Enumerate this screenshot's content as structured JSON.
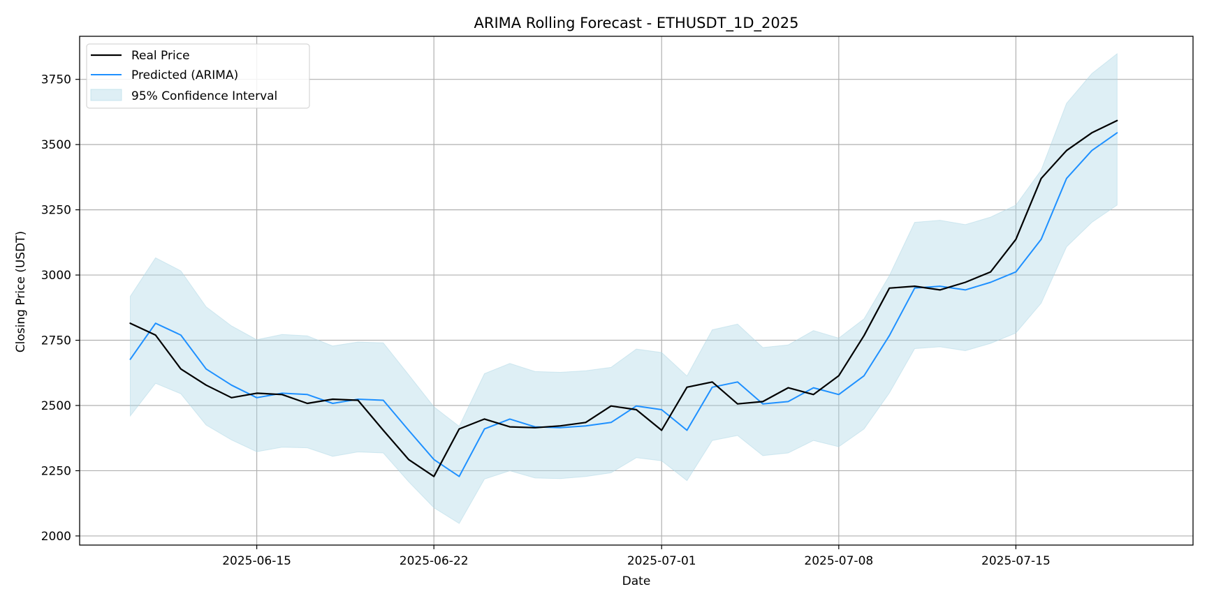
{
  "chart_data": {
    "type": "line",
    "title": "ARIMA Rolling Forecast - ETHUSDT_1D_2025",
    "xlabel": "Date",
    "ylabel": "Closing Price (USDT)",
    "x_axis_type": "date",
    "xlim": [
      "2025-06-08",
      "2025-07-22"
    ],
    "ylim": [
      1965,
      3915
    ],
    "x_ticks": [
      "2025-06-15",
      "2025-06-22",
      "2025-07-01",
      "2025-07-08",
      "2025-07-15"
    ],
    "y_ticks": [
      2000,
      2250,
      2500,
      2750,
      3000,
      3250,
      3500,
      3750
    ],
    "grid": true,
    "legend_position": "top-left",
    "x": [
      "2025-06-10",
      "2025-06-11",
      "2025-06-12",
      "2025-06-13",
      "2025-06-14",
      "2025-06-15",
      "2025-06-16",
      "2025-06-17",
      "2025-06-18",
      "2025-06-19",
      "2025-06-20",
      "2025-06-21",
      "2025-06-22",
      "2025-06-23",
      "2025-06-24",
      "2025-06-25",
      "2025-06-26",
      "2025-06-27",
      "2025-06-28",
      "2025-06-29",
      "2025-06-30",
      "2025-07-01",
      "2025-07-02",
      "2025-07-03",
      "2025-07-04",
      "2025-07-05",
      "2025-07-06",
      "2025-07-07",
      "2025-07-08",
      "2025-07-09",
      "2025-07-10",
      "2025-07-11",
      "2025-07-12",
      "2025-07-13",
      "2025-07-14",
      "2025-07-15",
      "2025-07-16",
      "2025-07-17",
      "2025-07-18",
      "2025-07-19",
      "2025-07-20"
    ],
    "series": [
      {
        "name": "Real Price",
        "color": "#000000",
        "values": [
          2815,
          2770,
          2640,
          2578,
          2530,
          2547,
          2542,
          2508,
          2524,
          2520,
          2405,
          2293,
          2228,
          2410,
          2448,
          2418,
          2415,
          2422,
          2435,
          2498,
          2484,
          2405,
          2570,
          2590,
          2506,
          2515,
          2568,
          2542,
          2614,
          2768,
          2950,
          2957,
          2943,
          2972,
          3012,
          3137,
          3370,
          3477,
          3545,
          3592,
          null
        ],
        "line_width": 2.2
      },
      {
        "name": "Predicted (ARIMA)",
        "color": "#1e90ff",
        "values": [
          2677,
          2815,
          2770,
          2640,
          2578,
          2530,
          2547,
          2542,
          2508,
          2524,
          2520,
          2405,
          2293,
          2228,
          2410,
          2448,
          2418,
          2415,
          2422,
          2435,
          2498,
          2484,
          2405,
          2570,
          2590,
          2506,
          2515,
          2568,
          2542,
          2614,
          2768,
          2950,
          2957,
          2943,
          2972,
          3012,
          3137,
          3370,
          3477,
          3545,
          null
        ],
        "line_width": 2.0
      }
    ],
    "confidence_interval": {
      "name": "95% Confidence Interval",
      "color": "#add8e6",
      "lower": [
        2460,
        2585,
        2545,
        2425,
        2368,
        2323,
        2340,
        2338,
        2305,
        2322,
        2318,
        2208,
        2108,
        2048,
        2218,
        2250,
        2222,
        2220,
        2228,
        2242,
        2300,
        2288,
        2212,
        2366,
        2385,
        2308,
        2318,
        2366,
        2342,
        2410,
        2548,
        2718,
        2725,
        2710,
        2738,
        2778,
        2892,
        3108,
        3202,
        3268,
        null
      ],
      "upper": [
        2918,
        3066,
        3016,
        2878,
        2805,
        2752,
        2772,
        2767,
        2728,
        2743,
        2740,
        2618,
        2495,
        2420,
        2622,
        2661,
        2630,
        2627,
        2633,
        2646,
        2716,
        2703,
        2613,
        2790,
        2812,
        2722,
        2732,
        2787,
        2758,
        2832,
        2998,
        3202,
        3210,
        3193,
        3222,
        3268,
        3402,
        3658,
        3772,
        3848,
        null
      ]
    }
  }
}
